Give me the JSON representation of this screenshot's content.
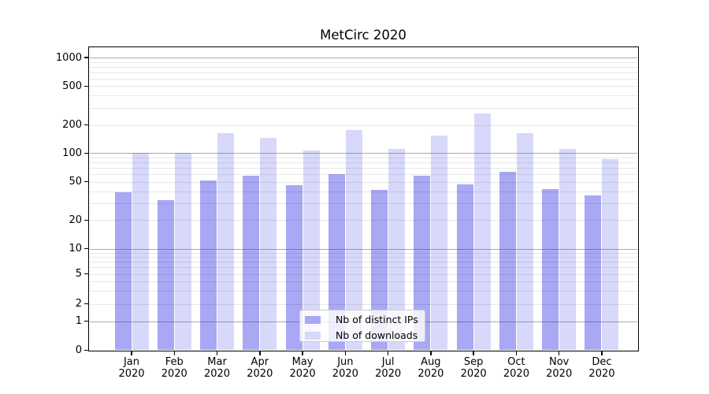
{
  "title": "MetCirc 2020",
  "y_axis": {
    "tick_labels": [
      "0",
      "1",
      "2",
      "5",
      "10",
      "20",
      "50",
      "100",
      "200",
      "500",
      "1000"
    ]
  },
  "x_axis": {
    "months": [
      "Jan",
      "Feb",
      "Mar",
      "Apr",
      "May",
      "Jun",
      "Jul",
      "Aug",
      "Sep",
      "Oct",
      "Nov",
      "Dec"
    ],
    "year_line": "2020"
  },
  "legend": {
    "items": [
      "Nb of distinct IPs",
      "Nb of downloads"
    ]
  },
  "colors": {
    "distinct_ips_bar": "#a8a8f4",
    "downloads_bar": "#d8d8fa",
    "major_gridline": "#b0b0b0",
    "minor_gridline": "#e9e9e9",
    "axis": "#000000",
    "legend_border": "#cccccc"
  },
  "chart_data": {
    "type": "bar",
    "title": "MetCirc 2020",
    "categories": [
      "Jan 2020",
      "Feb 2020",
      "Mar 2020",
      "Apr 2020",
      "May 2020",
      "Jun 2020",
      "Jul 2020",
      "Aug 2020",
      "Sep 2020",
      "Oct 2020",
      "Nov 2020",
      "Dec 2020"
    ],
    "series": [
      {
        "name": "Nb of distinct IPs",
        "color": "#a8a8f4",
        "values": [
          39,
          32,
          52,
          58,
          46,
          60,
          41,
          58,
          47,
          64,
          42,
          36
        ]
      },
      {
        "name": "Nb of downloads",
        "color": "#d8d8fa",
        "values": [
          101,
          101,
          164,
          144,
          107,
          178,
          111,
          153,
          260,
          162,
          110,
          87
        ]
      }
    ],
    "yscale": "symlog",
    "y_ticks": [
      0,
      1,
      2,
      5,
      10,
      20,
      50,
      100,
      200,
      500,
      1000
    ],
    "ylim": [
      0,
      1500
    ],
    "xlabel": "",
    "ylabel": "",
    "grid": "horizontal, major and minor",
    "legend_position": "lower center"
  }
}
